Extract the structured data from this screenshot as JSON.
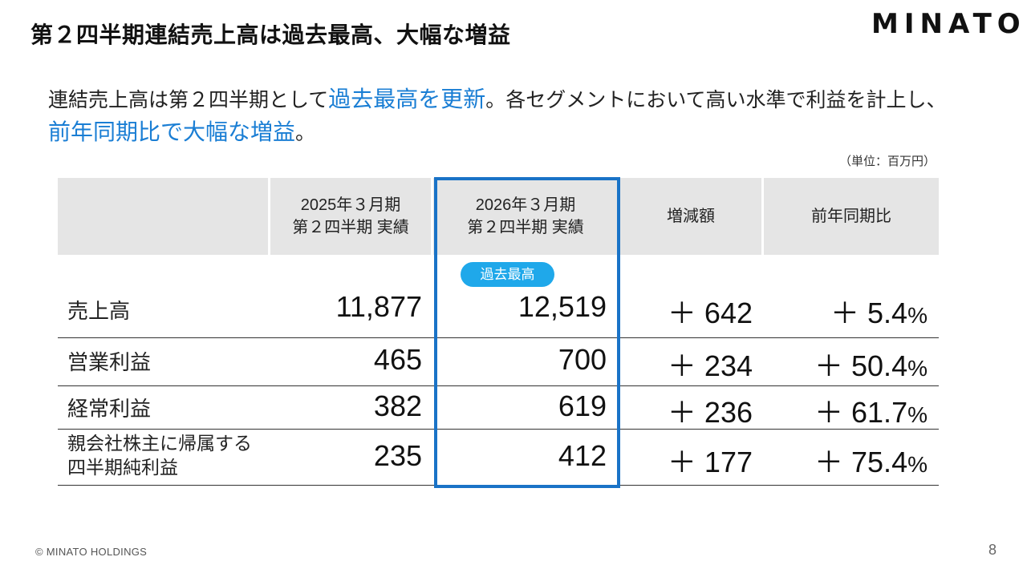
{
  "slide": {
    "title": "第２四半期連結売上高は過去最高、大幅な増益",
    "logo": "MINATO",
    "lead": {
      "part1": "連結売上高は第２四半期として",
      "hl1": "過去最高を更新",
      "part2": "。各セグメントにおいて高い水準で利益を計上し、",
      "hl2": "前年同期比で大幅な増益",
      "part3": "。"
    },
    "unit": "（単位：百万円）",
    "badge": "過去最高",
    "footer": "© MINATO HOLDINGS",
    "page_number": "8"
  },
  "table": {
    "headers": [
      "",
      "2025年３月期\n第２四半期 実績",
      "2026年３月期\n第２四半期 実績",
      "増減額",
      "前年同期比"
    ],
    "rows": [
      {
        "label": "売上高",
        "prev": "11,877",
        "curr": "12,519",
        "diff": "＋ 642",
        "ratio": "＋ 5.4",
        "pct": "%"
      },
      {
        "label": "営業利益",
        "prev": "465",
        "curr": "700",
        "diff": "＋ 234",
        "ratio": "＋ 50.4",
        "pct": "%"
      },
      {
        "label": "経常利益",
        "prev": "382",
        "curr": "619",
        "diff": "＋ 236",
        "ratio": "＋ 61.7",
        "pct": "%"
      },
      {
        "label": "親会社株主に帰属する\n四半期純利益",
        "prev": "235",
        "curr": "412",
        "diff": "＋ 177",
        "ratio": "＋ 75.4",
        "pct": "%"
      }
    ]
  },
  "colors": {
    "accent_text": "#1a7ed4",
    "highlight_frame": "#1a73c7",
    "badge_bg": "#1fa8ea",
    "header_bg": "#e5e5e5"
  }
}
